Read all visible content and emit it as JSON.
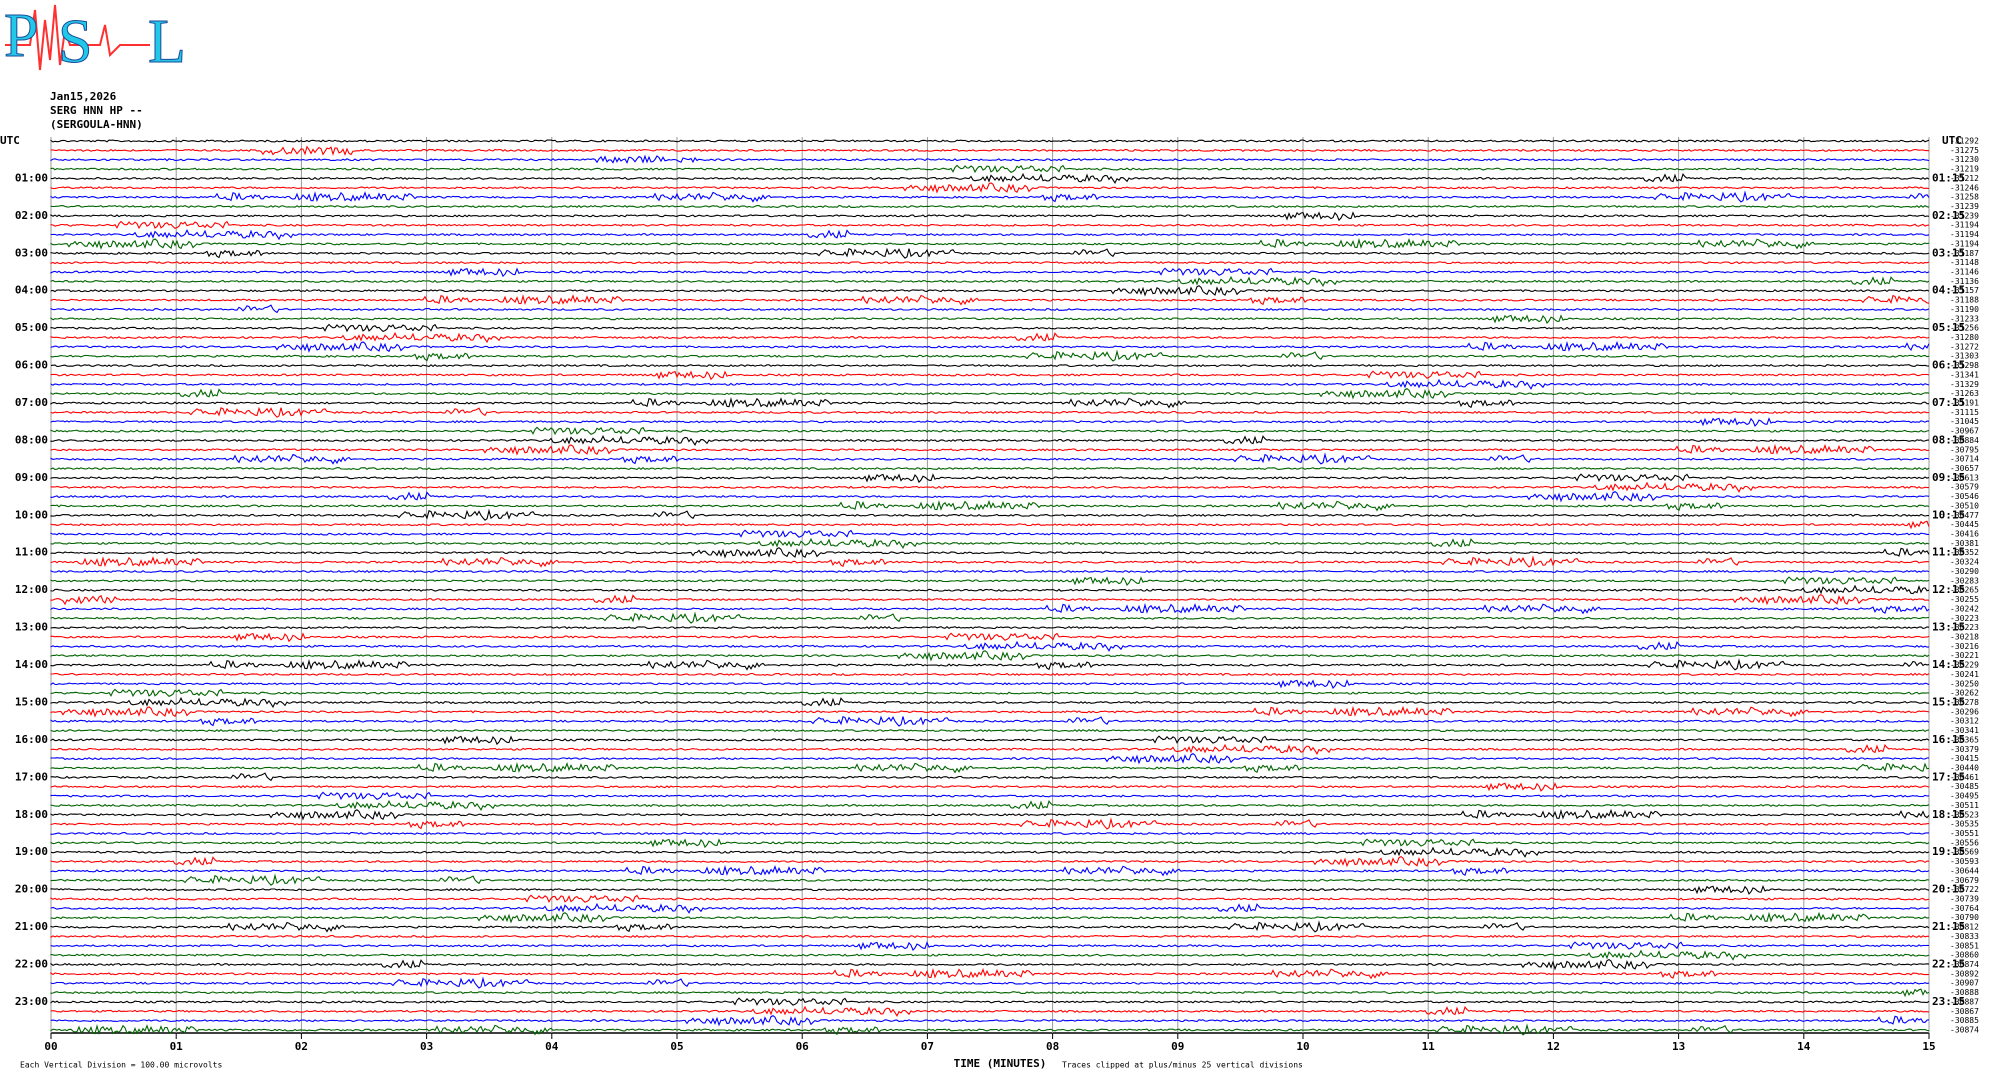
{
  "chart_data": {
    "type": "helicorder",
    "logo_letters": [
      "P",
      "S",
      "L"
    ],
    "date": "Jan15,2026",
    "channel": "SERG HNN HP --",
    "station": "(SERGOULA-HNN)",
    "left_axis_title": "UTC",
    "right_axis_title": "UTC",
    "left_labels": [
      "01:00",
      "02:00",
      "03:00",
      "04:00",
      "05:00",
      "06:00",
      "07:00",
      "08:00",
      "09:00",
      "10:00",
      "11:00",
      "12:00",
      "13:00",
      "14:00",
      "15:00",
      "16:00",
      "17:00",
      "18:00",
      "19:00",
      "20:00",
      "21:00",
      "22:00",
      "23:00"
    ],
    "right_labels": [
      "01:15",
      "02:15",
      "03:15",
      "04:15",
      "05:15",
      "06:15",
      "07:15",
      "08:15",
      "09:15",
      "10:15",
      "11:15",
      "12:15",
      "13:15",
      "14:15",
      "15:15",
      "16:15",
      "17:15",
      "18:15",
      "19:15",
      "20:15",
      "21:15",
      "22:15",
      "23:15"
    ],
    "trace_offsets": [
      -31292,
      -31275,
      -31230,
      -31219,
      -31212,
      -31246,
      -31258,
      -31239,
      -31239,
      -31194,
      -31194,
      -31194,
      -31187,
      -31148,
      -31146,
      -31136,
      -31157,
      -31188,
      -31190,
      -31233,
      -31256,
      -31280,
      -31272,
      -31303,
      -31298,
      -31341,
      -31329,
      -31263,
      -31191,
      -31115,
      -31045,
      -30967,
      -30884,
      -30795,
      -30714,
      -30657,
      -30613,
      -30579,
      -30546,
      -30510,
      -30477,
      -30445,
      -30416,
      -30381,
      -30352,
      -30324,
      -30290,
      -30283,
      -30265,
      -30255,
      -30242,
      -30223,
      -30223,
      -30218,
      -30216,
      -30221,
      -30229,
      -30241,
      -30250,
      -30262,
      -30278,
      -30296,
      -30312,
      -30341,
      -30365,
      -30379,
      -30415,
      -30440,
      -30461,
      -30485,
      -30495,
      -30511,
      -30523,
      -30535,
      -30551,
      -30556,
      -30569,
      -30593,
      -30644,
      -30679,
      -30722,
      -30739,
      -30764,
      -30790,
      -30812,
      -30833,
      -30851,
      -30860,
      -30874,
      -30892,
      -30907,
      -30888,
      -30887,
      -30867,
      -30885,
      -30874
    ],
    "trace_colors": [
      "#000000",
      "#ff0000",
      "#0000ff",
      "#006400"
    ],
    "xlabel": "TIME (MINUTES)",
    "xlim": [
      0,
      15
    ],
    "xticks": [
      {
        "value": 0,
        "label": "00"
      },
      {
        "value": 1,
        "label": "01"
      },
      {
        "value": 2,
        "label": "02"
      },
      {
        "value": 3,
        "label": "03"
      },
      {
        "value": 4,
        "label": "04"
      },
      {
        "value": 5,
        "label": "05"
      },
      {
        "value": 6,
        "label": "06"
      },
      {
        "value": 7,
        "label": "07"
      },
      {
        "value": 8,
        "label": "08"
      },
      {
        "value": 9,
        "label": "09"
      },
      {
        "value": 10,
        "label": "10"
      },
      {
        "value": 11,
        "label": "11"
      },
      {
        "value": 12,
        "label": "12"
      },
      {
        "value": 13,
        "label": "13"
      },
      {
        "value": 14,
        "label": "14"
      },
      {
        "value": 15,
        "label": "15"
      }
    ],
    "grid": true,
    "scale_note": "Each Vertical Division =  100.00 microvolts",
    "clip_note": "Traces clipped at plus/minus 25 vertical divisions"
  }
}
